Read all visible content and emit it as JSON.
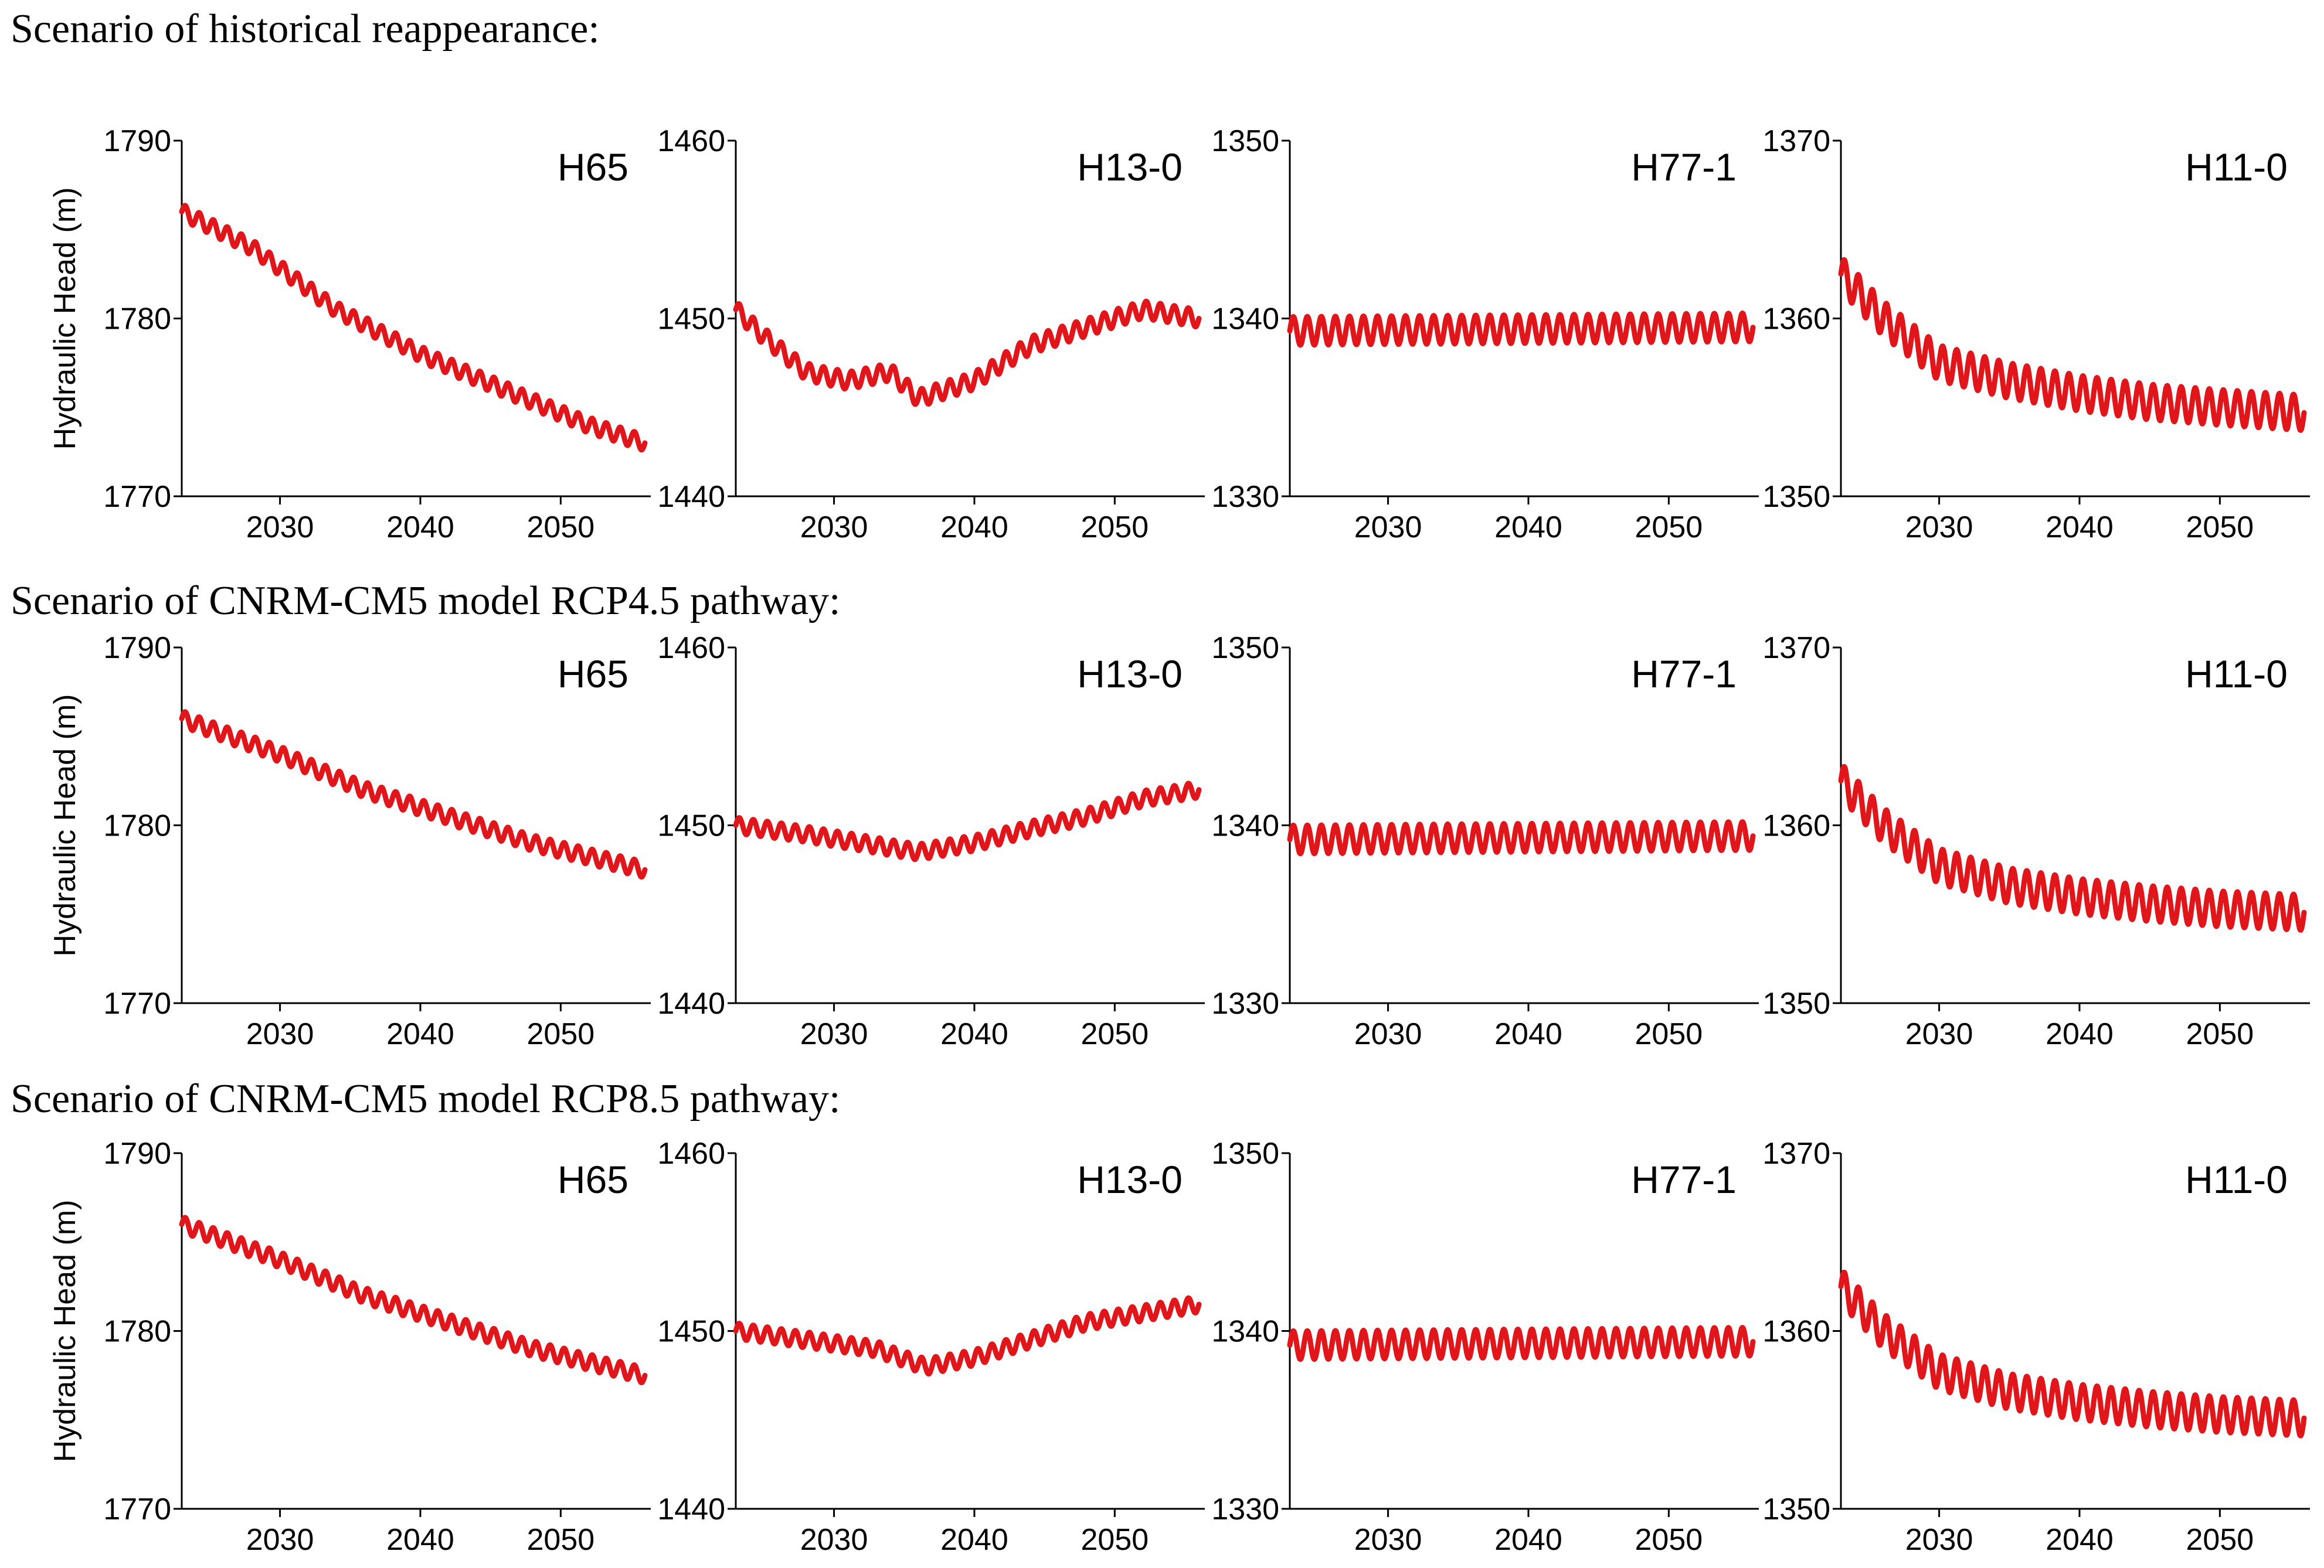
{
  "figure": {
    "rows": [
      {
        "title": "Scenario of historical reappearance:"
      },
      {
        "title": "Scenario of CNRM-CM5 model RCP4.5 pathway:"
      },
      {
        "title": "Scenario of CNRM-CM5 model RCP8.5 pathway:"
      }
    ]
  },
  "chart_data": [
    {
      "type": "line",
      "scenario": "historical reappearance",
      "well": "H65",
      "ylabel": "Hydraulic Head (m)",
      "ylim": [
        1770,
        1790
      ],
      "yticks": [
        1770,
        1780,
        1790
      ],
      "xlim": [
        2023,
        2056
      ],
      "xticks": [
        2030,
        2040,
        2050
      ],
      "series": [
        {
          "name": "H65",
          "color": "#e0161b",
          "x": [
            2023,
            2028,
            2034,
            2040,
            2046,
            2052,
            2056
          ],
          "y": [
            1786,
            1784,
            1780.5,
            1778,
            1776,
            1774,
            1773
          ],
          "seasonal_amplitude": 0.45
        }
      ]
    },
    {
      "type": "line",
      "scenario": "historical reappearance",
      "well": "H13-0",
      "ylabel": "",
      "ylim": [
        1440,
        1460
      ],
      "yticks": [
        1440,
        1450,
        1460
      ],
      "xlim": [
        2023,
        2056
      ],
      "xticks": [
        2030,
        2040,
        2050
      ],
      "series": [
        {
          "name": "H13-0",
          "color": "#e0161b",
          "x": [
            2023,
            2025,
            2028,
            2031,
            2034,
            2036,
            2040,
            2044,
            2048,
            2052,
            2056
          ],
          "y": [
            1450.5,
            1449,
            1447,
            1446.5,
            1447,
            1445.5,
            1446.5,
            1448.5,
            1449.5,
            1450.5,
            1450
          ],
          "seasonal_amplitude": 0.5
        }
      ]
    },
    {
      "type": "line",
      "scenario": "historical reappearance",
      "well": "H77-1",
      "ylabel": "",
      "ylim": [
        1330,
        1350
      ],
      "yticks": [
        1330,
        1340,
        1350
      ],
      "xlim": [
        2023,
        2056
      ],
      "xticks": [
        2030,
        2040,
        2050
      ],
      "series": [
        {
          "name": "H77-1",
          "color": "#e0161b",
          "x": [
            2023,
            2056
          ],
          "y": [
            1339.3,
            1339.5
          ],
          "seasonal_amplitude": 0.8
        }
      ]
    },
    {
      "type": "line",
      "scenario": "historical reappearance",
      "well": "H11-0",
      "ylabel": "",
      "ylim": [
        1350,
        1370
      ],
      "yticks": [
        1350,
        1360,
        1370
      ],
      "xlim": [
        2023,
        2056
      ],
      "xticks": [
        2030,
        2040,
        2050
      ],
      "series": [
        {
          "name": "H11-0",
          "color": "#e0161b",
          "x": [
            2023,
            2026,
            2030,
            2035,
            2040,
            2045,
            2050,
            2056
          ],
          "y": [
            1362.5,
            1360,
            1357.5,
            1356.5,
            1355.8,
            1355.3,
            1355,
            1354.7
          ],
          "seasonal_amplitude": 1.0
        }
      ]
    },
    {
      "type": "line",
      "scenario": "CNRM-CM5 RCP4.5",
      "well": "H65",
      "ylabel": "Hydraulic Head (m)",
      "ylim": [
        1770,
        1790
      ],
      "yticks": [
        1770,
        1780,
        1790
      ],
      "xlim": [
        2023,
        2056
      ],
      "xticks": [
        2030,
        2040,
        2050
      ],
      "series": [
        {
          "name": "H65",
          "color": "#e0161b",
          "x": [
            2023,
            2030,
            2036,
            2042,
            2048,
            2056
          ],
          "y": [
            1786,
            1784,
            1782,
            1780.5,
            1779,
            1777.5
          ],
          "seasonal_amplitude": 0.45
        }
      ]
    },
    {
      "type": "line",
      "scenario": "CNRM-CM5 RCP4.5",
      "well": "H13-0",
      "ylabel": "",
      "ylim": [
        1440,
        1460
      ],
      "yticks": [
        1440,
        1450,
        1460
      ],
      "xlim": [
        2023,
        2056
      ],
      "xticks": [
        2030,
        2040,
        2050
      ],
      "series": [
        {
          "name": "H13-0",
          "color": "#e0161b",
          "x": [
            2023,
            2028,
            2032,
            2036,
            2040,
            2044,
            2048,
            2052,
            2056
          ],
          "y": [
            1450,
            1449.5,
            1449,
            1448.5,
            1449,
            1449.8,
            1450.5,
            1451.5,
            1452
          ],
          "seasonal_amplitude": 0.45
        }
      ]
    },
    {
      "type": "line",
      "scenario": "CNRM-CM5 RCP4.5",
      "well": "H77-1",
      "ylabel": "",
      "ylim": [
        1330,
        1350
      ],
      "yticks": [
        1330,
        1340,
        1350
      ],
      "xlim": [
        2023,
        2056
      ],
      "xticks": [
        2030,
        2040,
        2050
      ],
      "series": [
        {
          "name": "H77-1",
          "color": "#e0161b",
          "x": [
            2023,
            2056
          ],
          "y": [
            1339.2,
            1339.4
          ],
          "seasonal_amplitude": 0.8
        }
      ]
    },
    {
      "type": "line",
      "scenario": "CNRM-CM5 RCP4.5",
      "well": "H11-0",
      "ylabel": "",
      "ylim": [
        1350,
        1370
      ],
      "yticks": [
        1350,
        1360,
        1370
      ],
      "xlim": [
        2023,
        2056
      ],
      "xticks": [
        2030,
        2040,
        2050
      ],
      "series": [
        {
          "name": "H11-0",
          "color": "#e0161b",
          "x": [
            2023,
            2026,
            2030,
            2035,
            2040,
            2045,
            2050,
            2056
          ],
          "y": [
            1362.5,
            1360,
            1357.7,
            1356.6,
            1356,
            1355.6,
            1355.3,
            1355.1
          ],
          "seasonal_amplitude": 1.0
        }
      ]
    },
    {
      "type": "line",
      "scenario": "CNRM-CM5 RCP8.5",
      "well": "H65",
      "ylabel": "Hydraulic Head (m)",
      "ylim": [
        1770,
        1790
      ],
      "yticks": [
        1770,
        1780,
        1790
      ],
      "xlim": [
        2023,
        2056
      ],
      "xticks": [
        2030,
        2040,
        2050
      ],
      "series": [
        {
          "name": "H65",
          "color": "#e0161b",
          "x": [
            2023,
            2030,
            2036,
            2042,
            2048,
            2056
          ],
          "y": [
            1786,
            1784,
            1782,
            1780.5,
            1779,
            1777.5
          ],
          "seasonal_amplitude": 0.45
        }
      ]
    },
    {
      "type": "line",
      "scenario": "CNRM-CM5 RCP8.5",
      "well": "H13-0",
      "ylabel": "",
      "ylim": [
        1440,
        1460
      ],
      "yticks": [
        1440,
        1450,
        1460
      ],
      "xlim": [
        2023,
        2056
      ],
      "xticks": [
        2030,
        2040,
        2050
      ],
      "series": [
        {
          "name": "H13-0",
          "color": "#e0161b",
          "x": [
            2023,
            2028,
            2033,
            2036.5,
            2040,
            2044,
            2048,
            2052,
            2056
          ],
          "y": [
            1450,
            1449.5,
            1449,
            1448,
            1448.5,
            1449.5,
            1450.5,
            1451,
            1451.5
          ],
          "seasonal_amplitude": 0.45
        }
      ]
    },
    {
      "type": "line",
      "scenario": "CNRM-CM5 RCP8.5",
      "well": "H77-1",
      "ylabel": "",
      "ylim": [
        1330,
        1350
      ],
      "yticks": [
        1330,
        1340,
        1350
      ],
      "xlim": [
        2023,
        2056
      ],
      "xticks": [
        2030,
        2040,
        2050
      ],
      "series": [
        {
          "name": "H77-1",
          "color": "#e0161b",
          "x": [
            2023,
            2056
          ],
          "y": [
            1339.2,
            1339.4
          ],
          "seasonal_amplitude": 0.8
        }
      ]
    },
    {
      "type": "line",
      "scenario": "CNRM-CM5 RCP8.5",
      "well": "H11-0",
      "ylabel": "",
      "ylim": [
        1350,
        1370
      ],
      "yticks": [
        1350,
        1360,
        1370
      ],
      "xlim": [
        2023,
        2056
      ],
      "xticks": [
        2030,
        2040,
        2050
      ],
      "series": [
        {
          "name": "H11-0",
          "color": "#e0161b",
          "x": [
            2023,
            2026,
            2030,
            2035,
            2040,
            2045,
            2050,
            2056
          ],
          "y": [
            1362.5,
            1360,
            1357.7,
            1356.6,
            1356,
            1355.6,
            1355.3,
            1355.1
          ],
          "seasonal_amplitude": 1.0
        }
      ]
    }
  ]
}
